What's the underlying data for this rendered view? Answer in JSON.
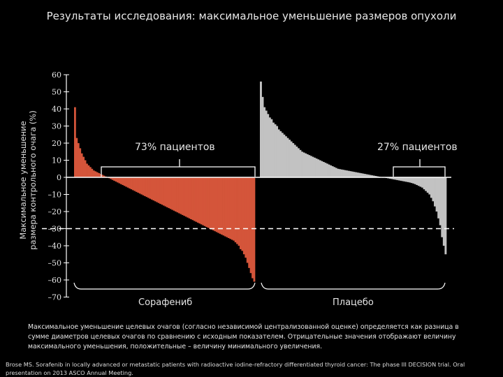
{
  "title": "Результаты исследования: максимальное уменьшение размеров опухоли",
  "chart_data": {
    "type": "bar",
    "title": "Результаты исследования: максимальное уменьшение размеров опухоли",
    "ylabel_lines": [
      "Максимальное уменьшение",
      "размера контрольного очага (%)"
    ],
    "ylim": [
      -70,
      60
    ],
    "yticks": [
      60,
      50,
      40,
      30,
      20,
      10,
      0,
      -10,
      -20,
      -30,
      -40,
      -50,
      -60,
      -70
    ],
    "reference_line": -30,
    "grid": false,
    "series": [
      {
        "name": "Сорафениб",
        "color": "#d4553a",
        "values": [
          41,
          23,
          20,
          17,
          14,
          12,
          10,
          8,
          7,
          6,
          5,
          4,
          3.5,
          3,
          2.5,
          2,
          1.5,
          1,
          0.5,
          0,
          -0.5,
          -1,
          -1.5,
          -2,
          -2.5,
          -3,
          -3.5,
          -4,
          -4.5,
          -5,
          -5.5,
          -6,
          -6.5,
          -7,
          -7.5,
          -8,
          -8.5,
          -9,
          -9.5,
          -10,
          -10.5,
          -11,
          -11.5,
          -12,
          -12.5,
          -13,
          -13.5,
          -14,
          -14.5,
          -15,
          -15.5,
          -16,
          -16.5,
          -17,
          -17.5,
          -18,
          -18.5,
          -19,
          -19.5,
          -20,
          -20.5,
          -21,
          -21.5,
          -22,
          -22.5,
          -23,
          -23.5,
          -24,
          -24.5,
          -25,
          -25.5,
          -26,
          -26.5,
          -27,
          -27.5,
          -28,
          -28.5,
          -29,
          -29.5,
          -30,
          -30.5,
          -31,
          -31.5,
          -32,
          -32.5,
          -33,
          -33.5,
          -34,
          -34.5,
          -35,
          -35.5,
          -36,
          -36.5,
          -37,
          -38,
          -39,
          -40,
          -42,
          -43,
          -45,
          -47,
          -50,
          -53,
          -56,
          -59,
          -61
        ]
      },
      {
        "name": "Плацебо",
        "color": "#c2c2c2",
        "values": [
          56,
          47,
          41,
          39,
          37,
          35,
          34,
          32,
          31,
          30,
          28,
          27,
          26,
          25,
          24,
          23,
          22,
          21,
          20,
          19,
          18,
          17,
          16,
          15,
          14.5,
          14,
          13.5,
          13,
          12.5,
          12,
          11.5,
          11,
          10.5,
          10,
          9.5,
          9,
          8.5,
          8,
          7.5,
          7,
          6.5,
          6,
          5.5,
          5,
          4.8,
          4.6,
          4.4,
          4.2,
          4,
          3.8,
          3.6,
          3.4,
          3.2,
          3,
          2.8,
          2.6,
          2.4,
          2.2,
          2,
          1.8,
          1.6,
          1.4,
          1.2,
          1,
          0.8,
          0.6,
          0.4,
          0.2,
          0,
          -0.2,
          -0.4,
          -0.6,
          -0.8,
          -1,
          -1.2,
          -1.4,
          -1.6,
          -1.8,
          -2,
          -2.2,
          -2.4,
          -2.6,
          -2.8,
          -3,
          -3.3,
          -3.6,
          -4,
          -4.5,
          -5,
          -5.5,
          -6,
          -7,
          -8,
          -9,
          -10,
          -12,
          -14,
          -17,
          -20,
          -24,
          -28,
          -35,
          -40,
          -45
        ]
      }
    ],
    "annotations": [
      "73% пациентов",
      "27% пациентов"
    ],
    "group_labels": [
      "Сорафениб",
      "Плацебо"
    ]
  },
  "caption": "Максимальное уменьшение целевых очагов (согласно независимой централизованной оценке) определяется как разница в сумме диаметров целевых очагов по сравнению с исходным показателем. Отрицательные значения отображают величину максимального уменьшения, положительные – величину минимального увеличения.",
  "source": "Brose MS. Sorafenib in locally advanced or metastatic patients with radioactive iodine-refractory differentiated thyroid cancer: The phase III DECISION trial. Oral presentation on 2013 ASCO Annual Meeting."
}
